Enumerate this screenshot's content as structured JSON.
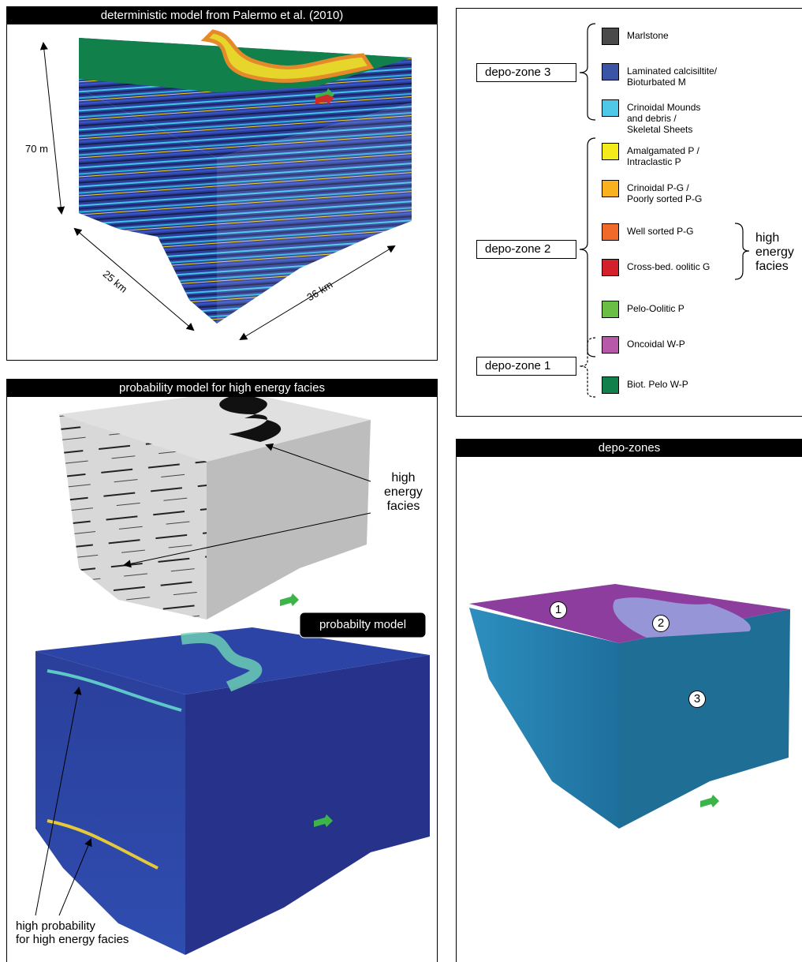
{
  "panels": [
    {
      "title": "deterministic model from Palermo et al. (2010)",
      "labels": [
        "70 m",
        "25 km",
        "36 km"
      ]
    },
    {
      "title": "probability model for high energy facies",
      "annotations": [
        "high\nenergy\nfacies",
        "probabilty model",
        "high probability\nfor high energy facies"
      ]
    },
    {
      "title": "depo-zones",
      "labels": [
        "1",
        "2",
        "3"
      ]
    }
  ],
  "legend": {
    "zones": [
      "depo-zone 3",
      "depo-zone 2",
      "depo-zone 1"
    ],
    "group": "high\nenergy\nfacies",
    "items": [
      {
        "label": "Marlstone",
        "color": "#4a4a4a"
      },
      {
        "label": "Laminated calcisiltite/\nBioturbated M",
        "color": "#3a55a5"
      },
      {
        "label": "Crinoidal Mounds\nand debris /\nSkeletal Sheets",
        "color": "#4fc8e8"
      },
      {
        "label": "Amalgamated P /\nIntraclastic P",
        "color": "#f4ec1a"
      },
      {
        "label": "Crinoidal P-G /\nPoorly sorted P-G",
        "color": "#f9b21e"
      },
      {
        "label": "Well sorted P-G",
        "color": "#f26a2a"
      },
      {
        "label": "Cross-bed. oolitic G",
        "color": "#d3202a"
      },
      {
        "label": "Pelo-Oolitic P",
        "color": "#6abd45"
      },
      {
        "label": "Oncoidal W-P",
        "color": "#b858a8"
      },
      {
        "label": "Biot. Pelo W-P",
        "color": "#11804a"
      }
    ]
  }
}
